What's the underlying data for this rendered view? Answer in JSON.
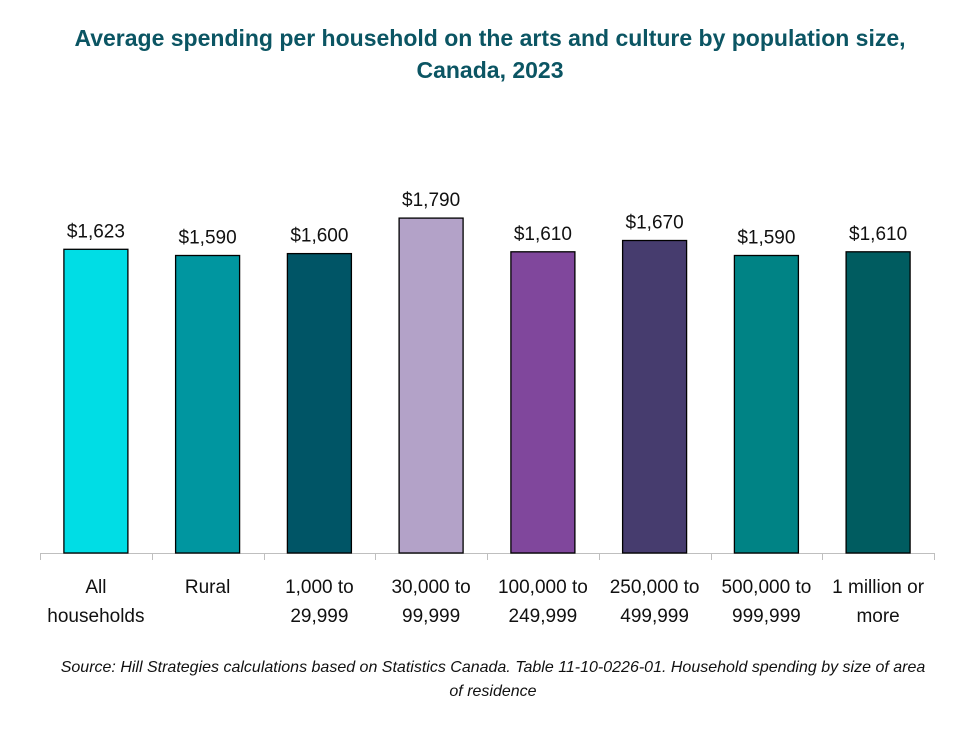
{
  "chart_data": {
    "type": "bar",
    "title": "Average spending per household on the arts and culture by population size, Canada, 2023",
    "categories": [
      [
        "All",
        "households"
      ],
      [
        "Rural"
      ],
      [
        "1,000 to",
        "29,999"
      ],
      [
        "30,000 to",
        "99,999"
      ],
      [
        "100,000 to",
        "249,999"
      ],
      [
        "250,000 to",
        "499,999"
      ],
      [
        "500,000 to",
        "999,999"
      ],
      [
        "1 million or",
        "more"
      ]
    ],
    "values": [
      1623,
      1590,
      1600,
      1790,
      1610,
      1670,
      1590,
      1610
    ],
    "value_labels": [
      "$1,623",
      "$1,590",
      "$1,600",
      "$1,790",
      "$1,610",
      "$1,670",
      "$1,590",
      "$1,610"
    ],
    "colors": [
      "#00dde5",
      "#0096a0",
      "#005566",
      "#b3a2c8",
      "#80479c",
      "#463c6e",
      "#008385",
      "#005c60"
    ],
    "ylim": [
      0,
      2000
    ],
    "xlabel": "",
    "ylabel": "",
    "grid": false,
    "legend": "none"
  },
  "source": "Source: Hill Strategies calculations based on Statistics Canada. Table 11-10-0226-01. Household spending by size of area of residence"
}
